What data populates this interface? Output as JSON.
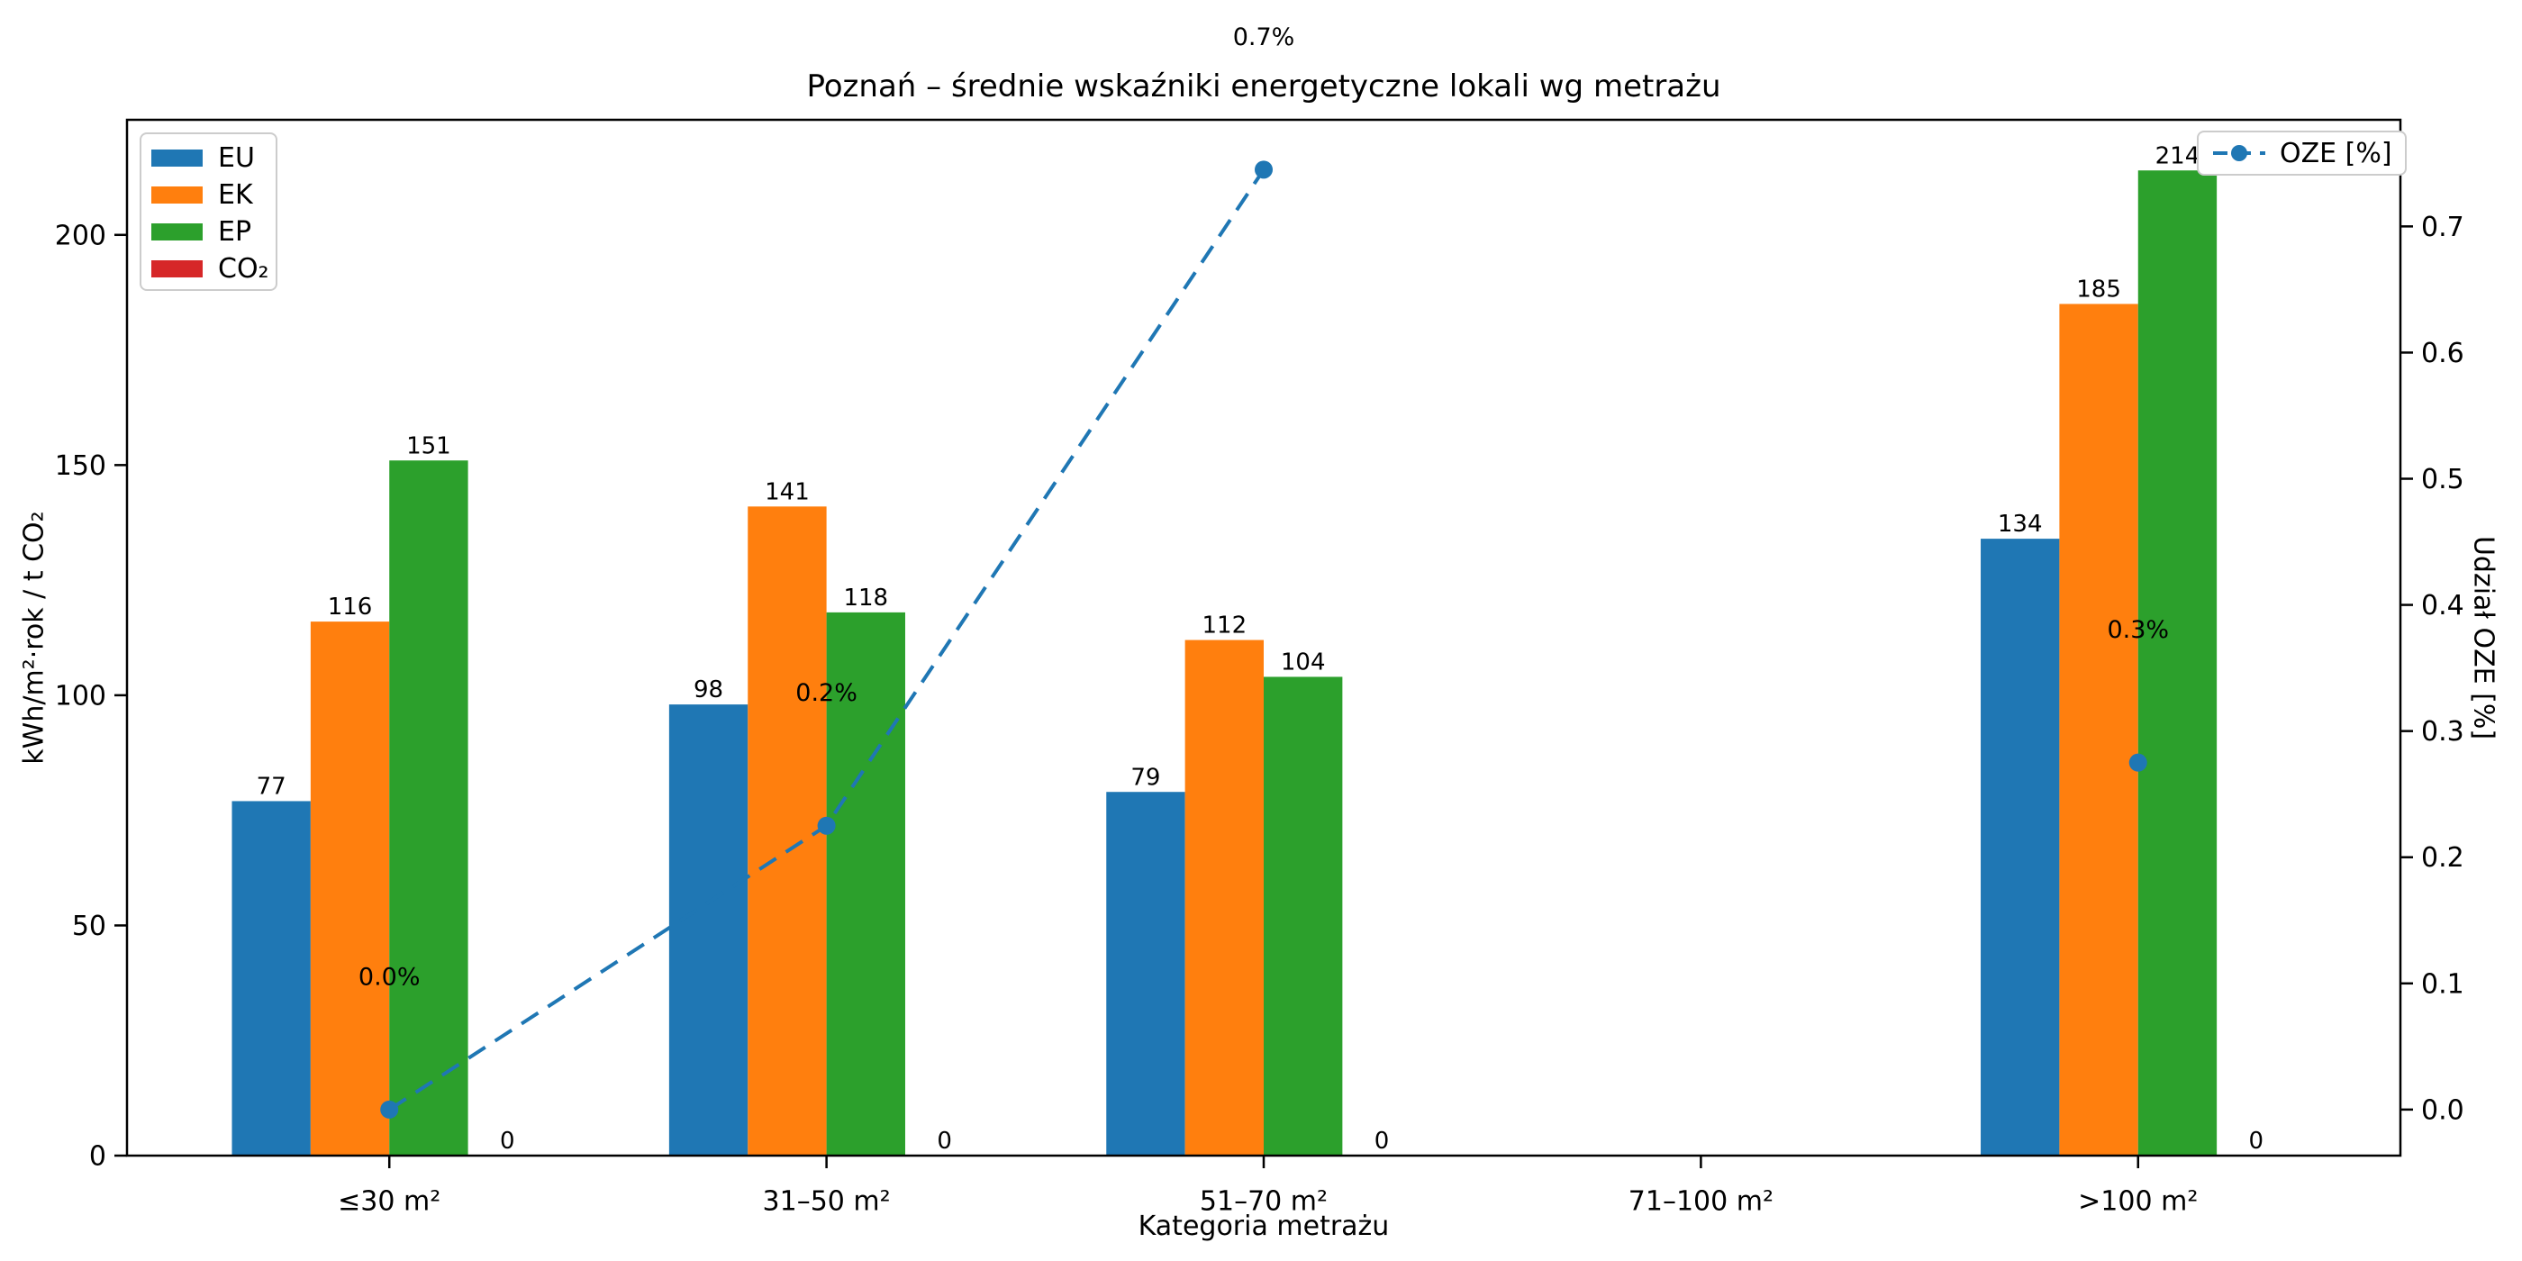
{
  "title": "Poznań – średnie wskaźniki energetyczne lokali wg metrażu",
  "chart_data": {
    "type": "bar",
    "title": "Poznań – średnie wskaźniki energetyczne lokali wg metrażu",
    "categories": [
      "≤30 m²",
      "31–50 m²",
      "51–70 m²",
      "71–100 m²",
      ">100 m²"
    ],
    "series": [
      {
        "name": "EU",
        "color": "#1f77b4",
        "values": [
          77,
          98,
          79,
          null,
          134
        ]
      },
      {
        "name": "EK",
        "color": "#ff7f0e",
        "values": [
          116,
          141,
          112,
          null,
          185
        ]
      },
      {
        "name": "EP",
        "color": "#2ca02c",
        "values": [
          151,
          118,
          104,
          null,
          214
        ]
      },
      {
        "name": "CO₂",
        "color": "#d62728",
        "values": [
          0,
          0,
          0,
          null,
          0
        ]
      }
    ],
    "line_series": {
      "name": "OZE [%]",
      "color": "#1f77b4",
      "style": "dashed",
      "marker": "circle",
      "values": [
        0.0,
        0.225,
        0.745,
        null,
        0.275
      ],
      "annotations": [
        "0.0%",
        "0.2%",
        "0.7%",
        null,
        "0.3%"
      ]
    },
    "xlabel": "Kategoria metrażu",
    "ylabel_left": "kWh/m²·rok / t CO₂",
    "ylabel_right": "Udział OZE [%]",
    "yticks_left": [
      "0",
      "50",
      "100",
      "150",
      "200"
    ],
    "yticks_right": [
      "0.0",
      "0.1",
      "0.2",
      "0.3",
      "0.4",
      "0.5",
      "0.6",
      "0.7"
    ],
    "ylim_left": [
      0,
      225
    ],
    "ylim_right": [
      -0.0365,
      0.7845
    ],
    "grid": false,
    "legend_left_position": "upper left",
    "legend_right_position": "upper right"
  }
}
